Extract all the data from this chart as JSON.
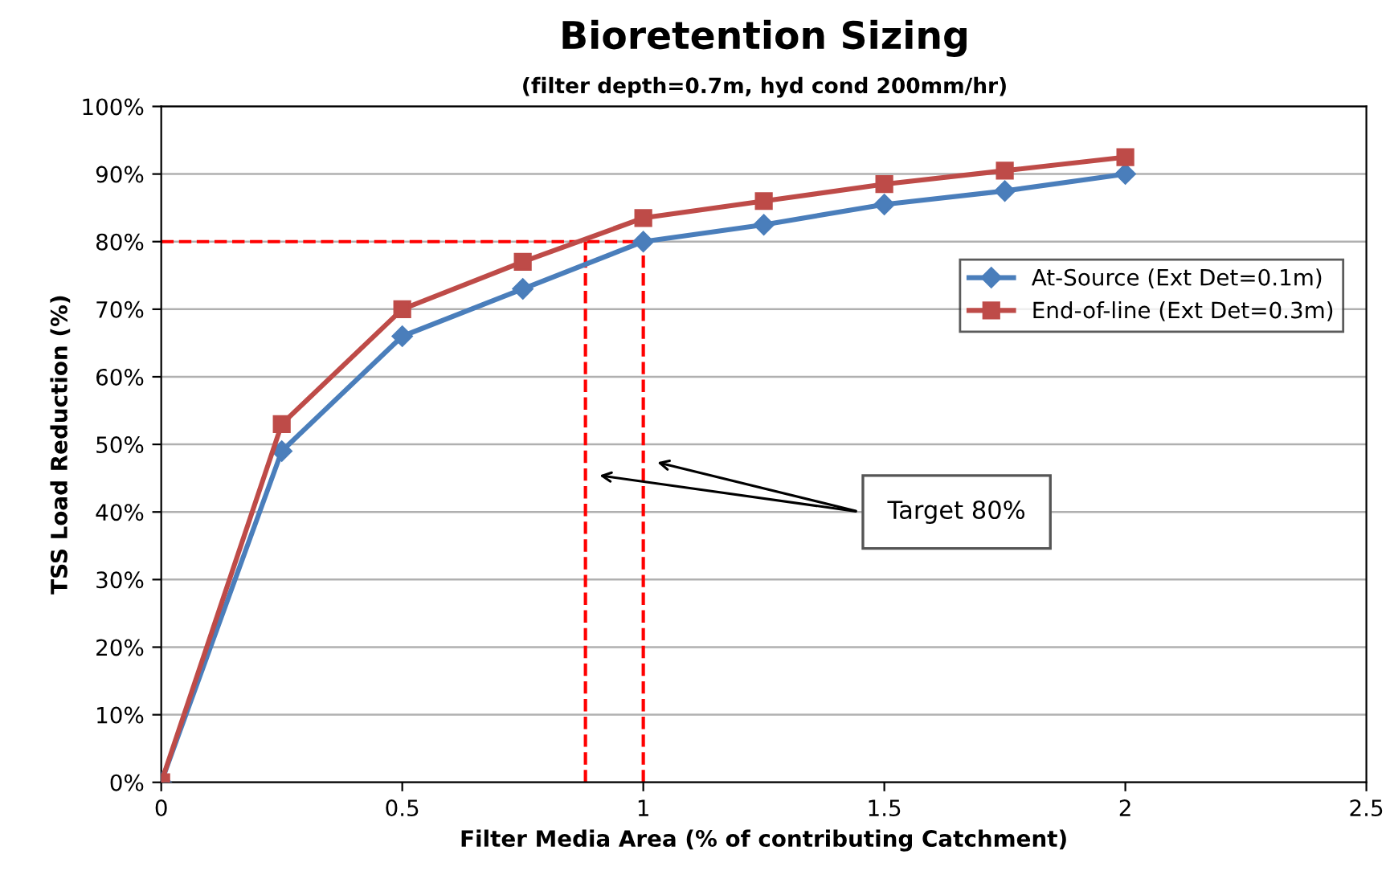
{
  "chart_data": {
    "type": "line",
    "title": "Bioretention Sizing",
    "subtitle": "(filter depth=0.7m, hyd cond 200mm/hr)",
    "xlabel": "Filter Media Area (% of contributing Catchment)",
    "ylabel": "TSS Load Reduction (%)",
    "x": [
      0,
      0.25,
      0.5,
      0.75,
      1,
      1.25,
      1.5,
      1.75,
      2
    ],
    "series": [
      {
        "name": "At-Source (Ext Det=0.1m)",
        "color": "#4a7ebb",
        "marker": "diamond",
        "values": [
          0,
          49,
          66,
          73,
          80,
          82.5,
          85.5,
          87.5,
          90
        ]
      },
      {
        "name": "End-of-line (Ext Det=0.3m)",
        "color": "#be4b48",
        "marker": "square",
        "values": [
          0,
          53,
          70,
          77,
          83.5,
          86,
          88.5,
          90.5,
          92.5
        ]
      }
    ],
    "xlim": [
      0,
      2.5
    ],
    "xticks": [
      0,
      0.5,
      1,
      1.5,
      2,
      2.5
    ],
    "ylim": [
      0,
      100
    ],
    "yticks": [
      {
        "value": 0,
        "label": "0%"
      },
      {
        "value": 10,
        "label": "10%"
      },
      {
        "value": 20,
        "label": "20%"
      },
      {
        "value": 30,
        "label": "30%"
      },
      {
        "value": 40,
        "label": "40%"
      },
      {
        "value": 50,
        "label": "50%"
      },
      {
        "value": 60,
        "label": "60%"
      },
      {
        "value": 70,
        "label": "70%"
      },
      {
        "value": 80,
        "label": "80%"
      },
      {
        "value": 90,
        "label": "90%"
      },
      {
        "value": 100,
        "label": "100%"
      }
    ],
    "ref_lines": [
      {
        "axis": "y",
        "value": 80,
        "color": "#ff0000",
        "line_style": "dashed"
      },
      {
        "axis": "x",
        "value": 0.88,
        "color": "#ff0000",
        "line_style": "dashed"
      },
      {
        "axis": "x",
        "value": 1,
        "color": "#ff0000",
        "line_style": "dashed"
      }
    ],
    "annotations": [
      "Target 80%"
    ],
    "grid": "y",
    "legend": "right",
    "line_style": "solid"
  }
}
